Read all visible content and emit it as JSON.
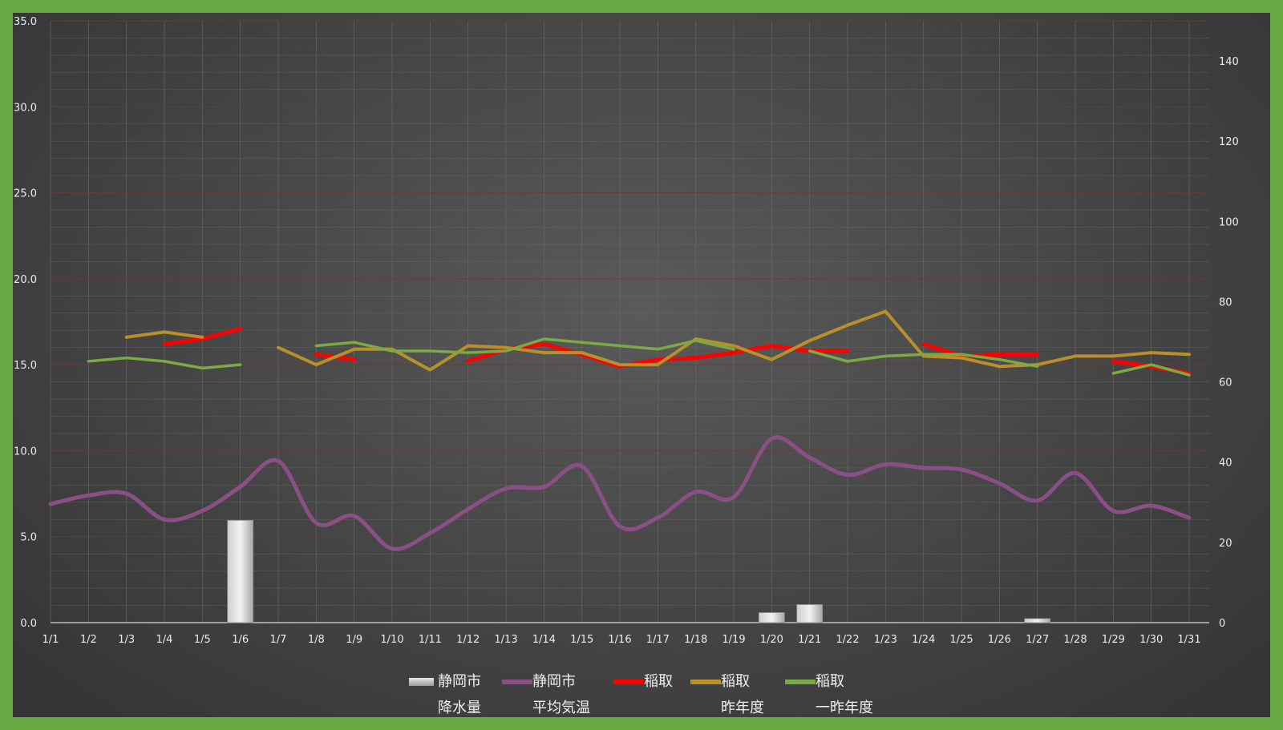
{
  "chart_data": {
    "type": "line",
    "categories": [
      "1/1",
      "1/2",
      "1/3",
      "1/4",
      "1/5",
      "1/6",
      "1/7",
      "1/8",
      "1/9",
      "1/10",
      "1/11",
      "1/12",
      "1/13",
      "1/14",
      "1/15",
      "1/16",
      "1/17",
      "1/18",
      "1/19",
      "1/20",
      "1/21",
      "1/22",
      "1/23",
      "1/24",
      "1/25",
      "1/26",
      "1/27",
      "1/28",
      "1/29",
      "1/30",
      "1/31"
    ],
    "y_left": {
      "ticks": [
        "0.0",
        "5.0",
        "10.0",
        "15.0",
        "20.0",
        "25.0",
        "30.0",
        "35.0"
      ],
      "ylim": [
        0,
        35
      ]
    },
    "y_right": {
      "ticks": [
        "0",
        "20",
        "40",
        "60",
        "80",
        "100",
        "120",
        "140"
      ],
      "ylim": [
        0,
        150
      ]
    },
    "grid": true,
    "legend_position": "bottom",
    "series": [
      {
        "name": "静岡市 降水量",
        "name_lines": [
          "静岡市",
          "降水量"
        ],
        "type": "bar",
        "axis": "right",
        "color": "#bdbdbd",
        "values": [
          0,
          0,
          0,
          0,
          0,
          25.5,
          0,
          0,
          0,
          0,
          0,
          0,
          0,
          0,
          0,
          0,
          0,
          0,
          0,
          2.5,
          4.5,
          0,
          0,
          0,
          0,
          0,
          1,
          0,
          0,
          0,
          0
        ]
      },
      {
        "name": "静岡市 平均気温",
        "name_lines": [
          "静岡市",
          "平均気温"
        ],
        "type": "line",
        "axis": "left",
        "color": "#8a4f85",
        "smooth": true,
        "values": [
          6.9,
          7.4,
          7.5,
          6.0,
          6.5,
          7.9,
          9.4,
          5.8,
          6.2,
          4.3,
          5.2,
          6.6,
          7.8,
          7.9,
          9.1,
          5.6,
          6.1,
          7.6,
          7.3,
          10.7,
          9.6,
          8.6,
          9.2,
          9.0,
          8.9,
          8.1,
          7.1,
          8.7,
          6.5,
          6.8,
          6.1
        ]
      },
      {
        "name": "稲取",
        "name_lines": [
          "稲取",
          ""
        ],
        "type": "line",
        "axis": "left",
        "color": "#ff0000",
        "values": [
          null,
          null,
          null,
          16.2,
          16.5,
          17.1,
          null,
          15.6,
          15.3,
          null,
          null,
          15.2,
          15.9,
          16.2,
          15.6,
          14.9,
          15.3,
          15.4,
          15.7,
          16.1,
          15.8,
          15.8,
          null,
          16.2,
          15.5,
          15.6,
          15.6,
          null,
          15.2,
          14.9,
          14.5
        ]
      },
      {
        "name": "稲取 昨年度",
        "name_lines": [
          "稲取",
          "昨年度"
        ],
        "type": "line",
        "axis": "left",
        "color": "#b8902a",
        "values": [
          null,
          null,
          16.6,
          16.9,
          16.6,
          null,
          16.0,
          15.0,
          15.9,
          15.9,
          14.7,
          16.1,
          16.0,
          15.7,
          15.7,
          15.0,
          15.0,
          16.5,
          16.1,
          15.3,
          16.4,
          17.3,
          18.1,
          15.5,
          15.4,
          14.9,
          15.0,
          15.5,
          15.5,
          15.7,
          15.6
        ]
      },
      {
        "name": "稲取 一昨年度",
        "name_lines": [
          "稲取",
          "一昨年度"
        ],
        "type": "line",
        "axis": "left",
        "color": "#7aaa45",
        "values": [
          null,
          15.2,
          15.4,
          15.2,
          14.8,
          15.0,
          null,
          16.1,
          16.3,
          15.8,
          15.8,
          15.7,
          15.8,
          16.5,
          16.3,
          16.1,
          15.9,
          16.4,
          15.9,
          null,
          15.8,
          15.2,
          15.5,
          15.6,
          15.6,
          15.3,
          14.9,
          null,
          14.5,
          15.0,
          14.4
        ]
      }
    ]
  }
}
